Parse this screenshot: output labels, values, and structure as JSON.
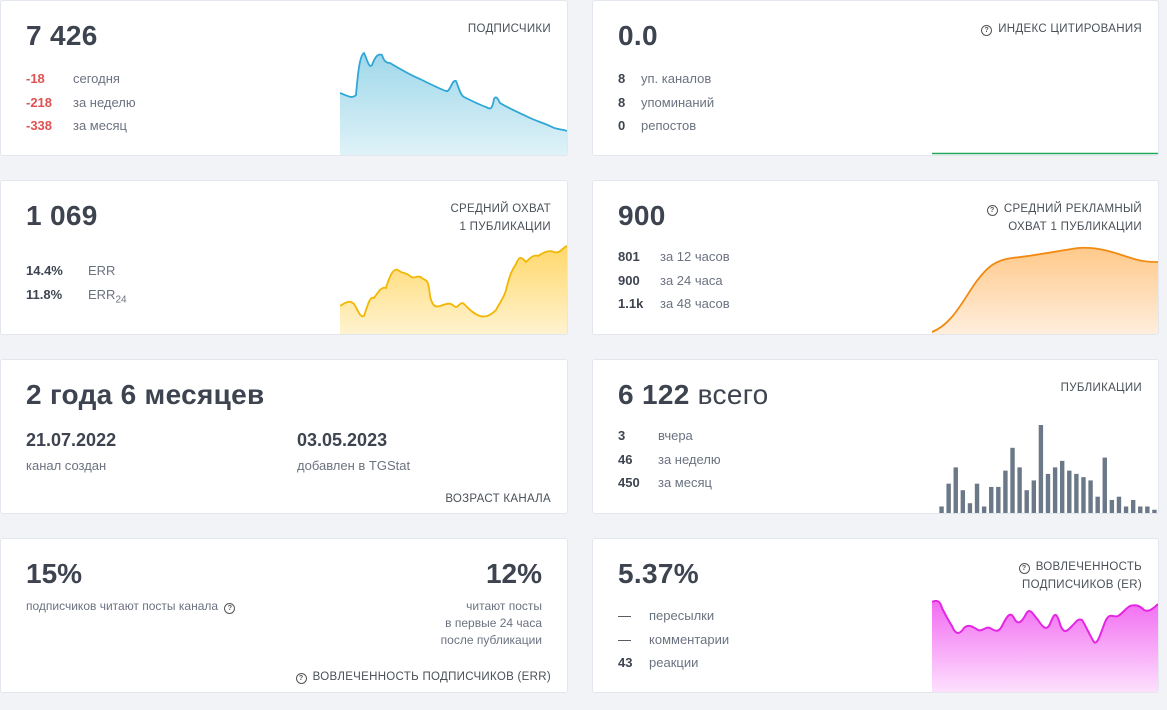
{
  "subscribers": {
    "value": "7 426",
    "label": "ПОДПИСЧИКИ",
    "rows": [
      {
        "value": "-18",
        "label": "сегодня"
      },
      {
        "value": "-218",
        "label": "за неделю"
      },
      {
        "value": "-338",
        "label": "за месяц"
      }
    ],
    "color": "#2ea7d6"
  },
  "citation": {
    "value": "0.0",
    "label": "ИНДЕКС ЦИТИРОВАНИЯ",
    "rows": [
      {
        "value": "8",
        "label": "уп. каналов"
      },
      {
        "value": "8",
        "label": "упоминаний"
      },
      {
        "value": "0",
        "label": "репостов"
      }
    ],
    "color": "#21a75a"
  },
  "reach": {
    "value": "1 069",
    "label_line1": "СРЕДНИЙ ОХВАТ",
    "label_line2": "1 ПУБЛИКАЦИИ",
    "rows": [
      {
        "value": "14.4%",
        "label": "ERR"
      },
      {
        "value": "11.8%",
        "label": "ERR",
        "sub": "24"
      }
    ],
    "color": "#f2b705"
  },
  "ad_reach": {
    "value": "900",
    "label_line1": "СРЕДНИЙ РЕКЛАМНЫЙ",
    "label_line2": "ОХВАТ 1 ПУБЛИКАЦИИ",
    "rows": [
      {
        "value": "801",
        "label": "за 12 часов"
      },
      {
        "value": "900",
        "label": "за 24 часа"
      },
      {
        "value": "1.1k",
        "label": "за 48 часов"
      }
    ],
    "color": "#f08a12"
  },
  "age": {
    "value": "2 года 6 месяцев",
    "created_date": "21.07.2022",
    "created_label": "канал создан",
    "added_date": "03.05.2023",
    "added_label": "добавлен в TGStat",
    "label": "ВОЗРАСТ КАНАЛА"
  },
  "posts": {
    "value": "6 122",
    "suffix": "всего",
    "label": "ПУБЛИКАЦИИ",
    "rows": [
      {
        "value": "3",
        "label": "вчера"
      },
      {
        "value": "46",
        "label": "за неделю"
      },
      {
        "value": "450",
        "label": "за месяц"
      }
    ],
    "bars": [
      2,
      9,
      14,
      7,
      3,
      9,
      2,
      8,
      8,
      13,
      20,
      14,
      7,
      10,
      27,
      12,
      14,
      16,
      13,
      12,
      11,
      10,
      5,
      17,
      4,
      5,
      2,
      4,
      2,
      2,
      1
    ],
    "color": "#6b7888"
  },
  "err": {
    "value_left": "15%",
    "text_left": "подписчиков читают посты канала",
    "value_right": "12%",
    "text_right_1": "читают посты",
    "text_right_2": "в первые 24 часа",
    "text_right_3": "после публикации",
    "label": "ВОВЛЕЧЕННОСТЬ ПОДПИСЧИКОВ (ERR)"
  },
  "er": {
    "value": "5.37%",
    "label_line1": "ВОВЛЕЧЕННОСТЬ",
    "label_line2": "ПОДПИСЧИКОВ (ER)",
    "rows": [
      {
        "value": "—",
        "label": "пересылки"
      },
      {
        "value": "—",
        "label": "комментарии"
      },
      {
        "value": "43",
        "label": "реакции"
      }
    ],
    "color": "#e327e3"
  }
}
